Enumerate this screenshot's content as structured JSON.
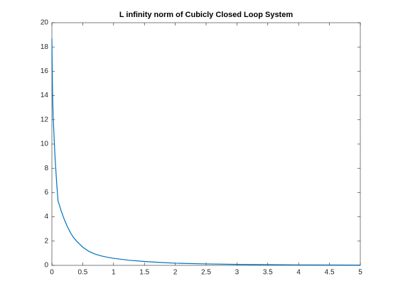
{
  "chart_data": {
    "type": "line",
    "title": "L infinity norm of Cubicly Closed Loop System",
    "x": [
      0,
      0.01,
      0.02,
      0.03,
      0.05,
      0.08,
      0.1,
      0.12,
      0.15,
      0.2,
      0.25,
      0.3,
      0.35,
      0.4,
      0.5,
      0.6,
      0.7,
      0.8,
      0.9,
      1,
      1.25,
      1.5,
      1.75,
      2,
      2.5,
      3,
      3.5,
      4,
      4.5,
      5
    ],
    "series": [
      {
        "color": "#0072bd",
        "values": [
          18.7,
          14.5,
          12.3,
          11.2,
          9.0,
          6.6,
          5.3,
          5.0,
          4.5,
          3.8,
          3.2,
          2.7,
          2.3,
          2.0,
          1.5,
          1.15,
          0.93,
          0.78,
          0.67,
          0.58,
          0.42,
          0.32,
          0.24,
          0.18,
          0.12,
          0.08,
          0.06,
          0.04,
          0.03,
          0.02
        ]
      }
    ],
    "xlim": [
      0,
      5
    ],
    "ylim": [
      0,
      20
    ],
    "xticks": [
      0,
      0.5,
      1,
      1.5,
      2,
      2.5,
      3,
      3.5,
      4,
      4.5,
      5
    ],
    "yticks": [
      0,
      2,
      4,
      6,
      8,
      10,
      12,
      14,
      16,
      18,
      20
    ]
  }
}
